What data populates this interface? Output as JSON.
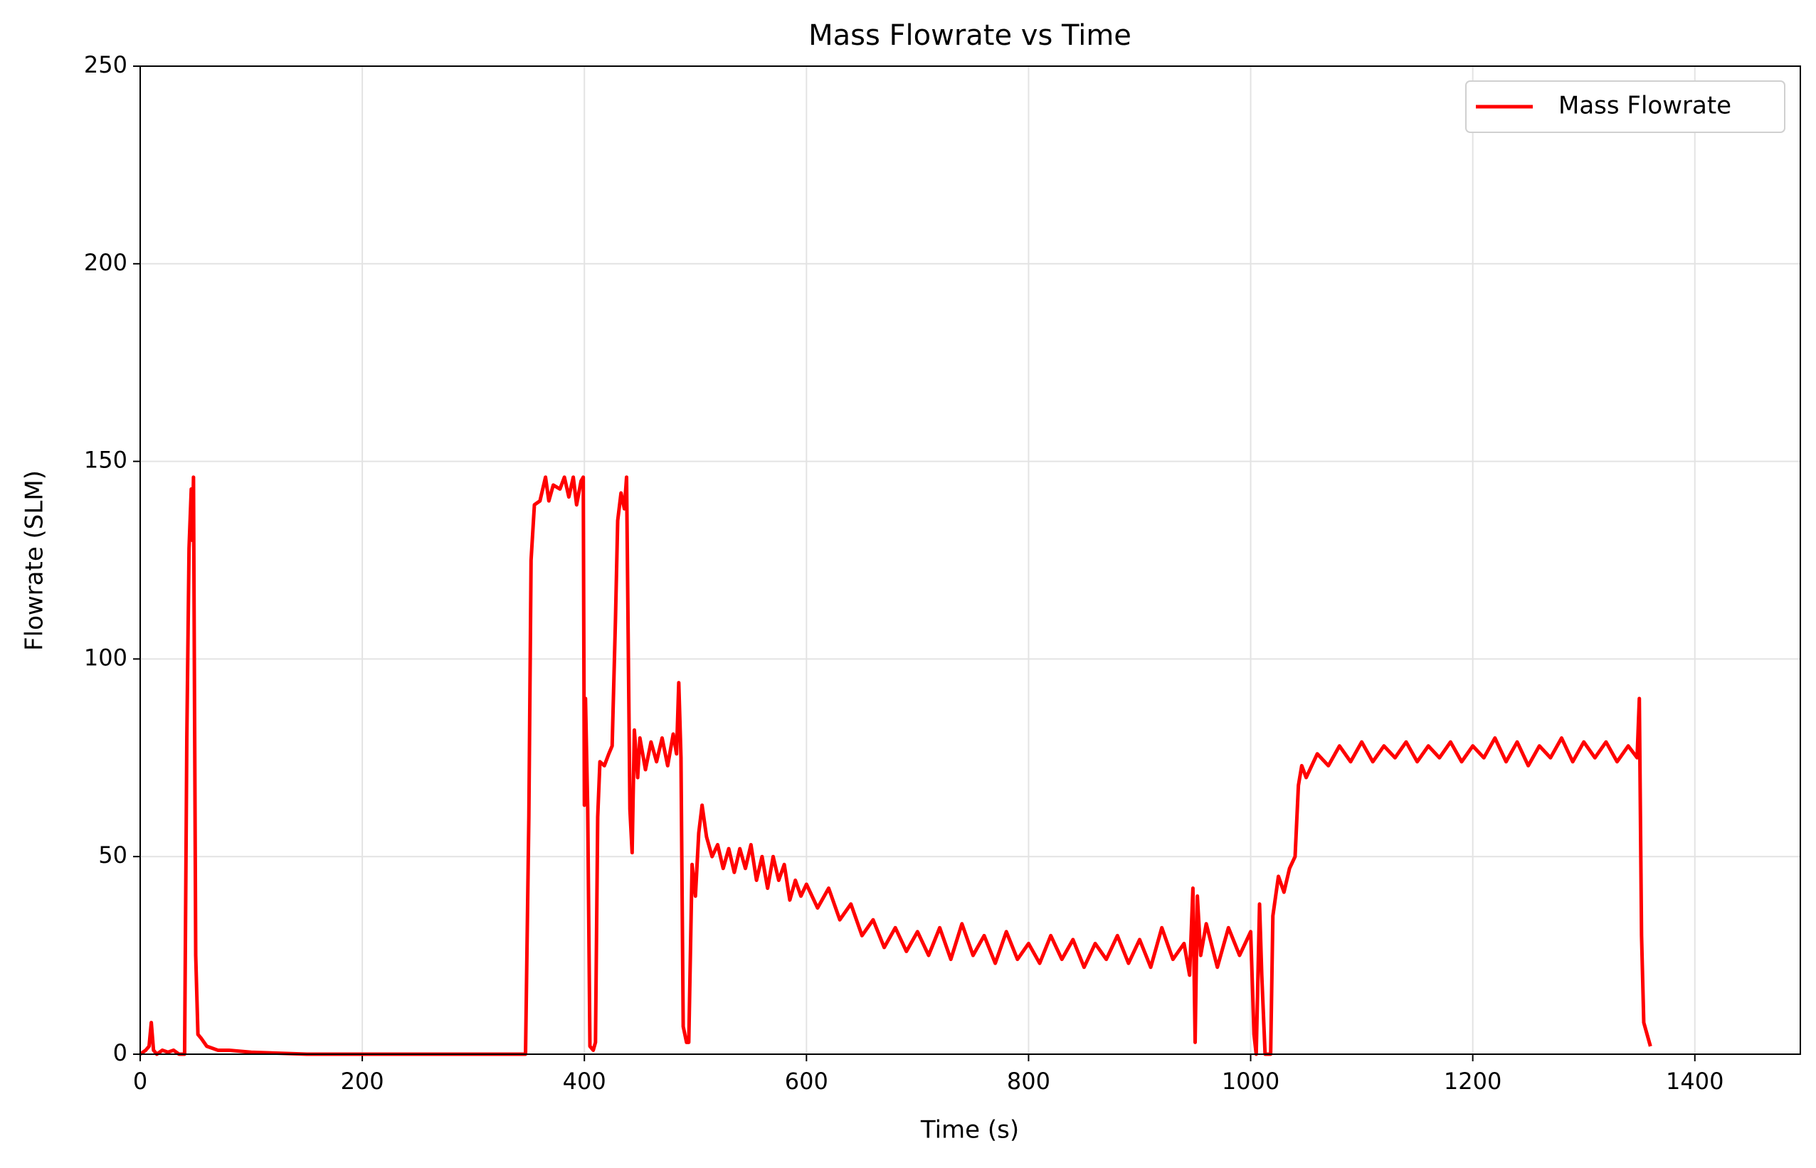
{
  "chart_data": {
    "type": "line",
    "title": "Mass Flowrate vs Time",
    "x_label": "Time (s)",
    "y_label": "Flowrate (SLM)",
    "xlim": [
      0,
      1495
    ],
    "ylim": [
      0,
      250
    ],
    "xticks": [
      0,
      200,
      400,
      600,
      800,
      1000,
      1200,
      1400
    ],
    "yticks": [
      0,
      50,
      100,
      150,
      200,
      250
    ],
    "grid": true,
    "legend": "upper right",
    "x": [
      0,
      5,
      8,
      10,
      12,
      15,
      20,
      25,
      30,
      35,
      40,
      42,
      44,
      46,
      47,
      48,
      50,
      52,
      55,
      60,
      70,
      80,
      100,
      150,
      200,
      300,
      347,
      350,
      352,
      355,
      360,
      365,
      368,
      372,
      378,
      382,
      386,
      390,
      393,
      397,
      399,
      400,
      401,
      403,
      405,
      408,
      410,
      412,
      414,
      418,
      422,
      425,
      428,
      430,
      433,
      436,
      438,
      441,
      443,
      445,
      448,
      450,
      455,
      460,
      465,
      470,
      475,
      480,
      483,
      485,
      487,
      489,
      492,
      494,
      497,
      500,
      503,
      506,
      510,
      515,
      520,
      525,
      530,
      535,
      540,
      545,
      550,
      555,
      560,
      565,
      570,
      575,
      580,
      585,
      590,
      595,
      600,
      610,
      620,
      630,
      640,
      650,
      660,
      670,
      680,
      690,
      700,
      710,
      720,
      730,
      740,
      750,
      760,
      770,
      780,
      790,
      800,
      810,
      820,
      830,
      840,
      850,
      860,
      870,
      880,
      890,
      900,
      910,
      920,
      930,
      940,
      945,
      948,
      950,
      952,
      955,
      960,
      970,
      980,
      990,
      1000,
      1003,
      1005,
      1008,
      1010,
      1013,
      1018,
      1020,
      1025,
      1030,
      1035,
      1040,
      1043,
      1046,
      1050,
      1060,
      1070,
      1080,
      1090,
      1100,
      1110,
      1120,
      1130,
      1140,
      1150,
      1160,
      1170,
      1180,
      1190,
      1200,
      1210,
      1220,
      1230,
      1240,
      1250,
      1260,
      1270,
      1280,
      1290,
      1300,
      1310,
      1320,
      1330,
      1340,
      1348,
      1350,
      1352,
      1354,
      1358,
      1360
    ],
    "series": [
      {
        "name": "Mass Flowrate",
        "color": "#ff0000",
        "values": [
          0,
          1,
          2,
          8,
          1,
          0,
          1,
          0.5,
          1,
          0,
          0,
          80,
          128,
          143,
          130,
          146,
          25,
          5,
          4,
          2,
          1,
          1,
          0.5,
          0,
          0,
          0,
          0,
          60,
          125,
          139,
          140,
          146,
          140,
          144,
          143,
          146,
          141,
          146,
          139,
          145,
          146,
          63,
          90,
          62,
          2,
          1,
          3,
          60,
          74,
          73,
          76,
          78,
          110,
          135,
          142,
          138,
          146,
          62,
          51,
          82,
          70,
          80,
          72,
          79,
          74,
          80,
          73,
          81,
          76,
          94,
          75,
          7,
          3,
          3,
          48,
          40,
          56,
          63,
          55,
          50,
          53,
          47,
          52,
          46,
          52,
          47,
          53,
          44,
          50,
          42,
          50,
          44,
          48,
          39,
          44,
          40,
          43,
          37,
          42,
          34,
          38,
          30,
          34,
          27,
          32,
          26,
          31,
          25,
          32,
          24,
          33,
          25,
          30,
          23,
          31,
          24,
          28,
          23,
          30,
          24,
          29,
          22,
          28,
          24,
          30,
          23,
          29,
          22,
          32,
          24,
          28,
          20,
          42,
          3,
          40,
          25,
          33,
          22,
          32,
          25,
          31,
          5,
          0,
          38,
          20,
          0,
          0,
          35,
          45,
          41,
          47,
          50,
          68,
          73,
          70,
          76,
          73,
          78,
          74,
          79,
          74,
          78,
          75,
          79,
          74,
          78,
          75,
          79,
          74,
          78,
          75,
          80,
          74,
          79,
          73,
          78,
          75,
          80,
          74,
          79,
          75,
          79,
          74,
          78,
          75,
          90,
          30,
          8,
          4,
          2
        ]
      }
    ]
  }
}
